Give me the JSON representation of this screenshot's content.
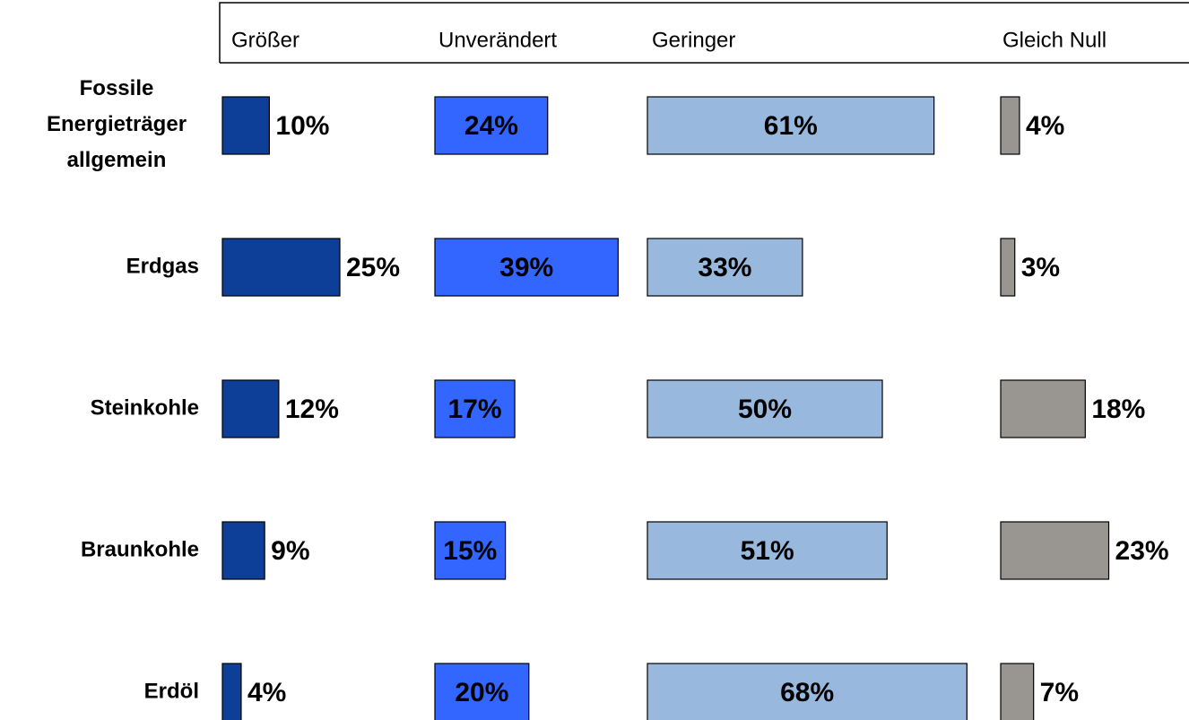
{
  "chart_data": {
    "type": "bar",
    "categories": [
      "Fossile Energieträger allgemein",
      "Erdgas",
      "Steinkohle",
      "Braunkohle",
      "Erdöl"
    ],
    "series": [
      {
        "name": "Größer",
        "color": "#0d3f99",
        "values": [
          10,
          25,
          12,
          9,
          4
        ],
        "value_labels": [
          "10%",
          "25%",
          "12%",
          "9%",
          "4%"
        ]
      },
      {
        "name": "Unverändert",
        "color": "#3366ff",
        "values": [
          24,
          39,
          17,
          15,
          20
        ],
        "value_labels": [
          "24%",
          "39%",
          "17%",
          "15%",
          "20%"
        ]
      },
      {
        "name": "Geringer",
        "color": "#99b8dd",
        "values": [
          61,
          33,
          50,
          51,
          68
        ],
        "value_labels": [
          "61%",
          "33%",
          "50%",
          "51%",
          "68%"
        ]
      },
      {
        "name": "Gleich Null",
        "color": "#999590",
        "values": [
          4,
          3,
          18,
          23,
          7
        ],
        "value_labels": [
          "4%",
          "3%",
          "18%",
          "23%",
          "7%"
        ]
      }
    ]
  }
}
